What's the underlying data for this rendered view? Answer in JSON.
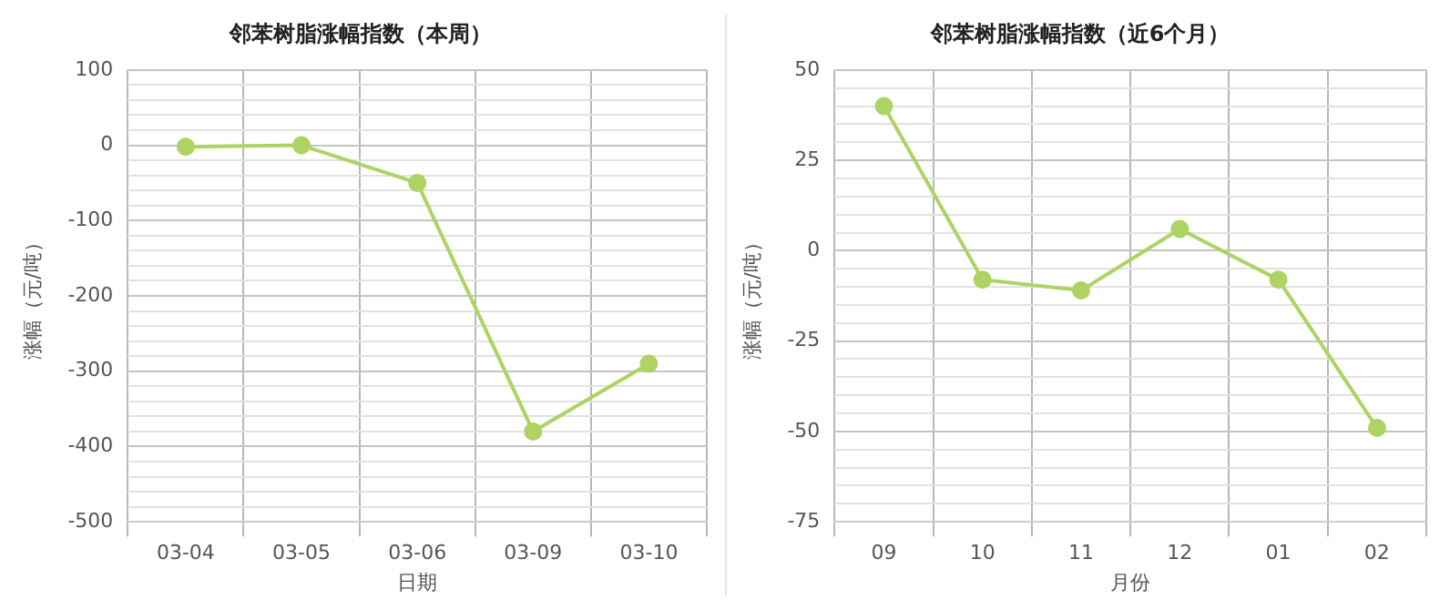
{
  "chart_data": [
    {
      "type": "line",
      "title": "邻苯树脂涨幅指数（本周）",
      "xlabel": "日期",
      "ylabel": "涨幅（元/吨）",
      "categories": [
        "03-04",
        "03-05",
        "03-06",
        "03-09",
        "03-10"
      ],
      "series": [
        {
          "color": "#add462",
          "values": [
            -2,
            0,
            -50,
            -380,
            -290
          ]
        }
      ],
      "ylim": [
        -500,
        100
      ],
      "yticks": [
        -500,
        {
          "value": -480,
          "label": null
        },
        {
          "value": -460,
          "label": null
        },
        {
          "value": -440,
          "label": null
        },
        {
          "value": -420,
          "label": null
        },
        -400,
        {
          "value": -380,
          "label": null
        },
        {
          "value": -360,
          "label": null
        },
        {
          "value": -340,
          "label": null
        },
        {
          "value": -320,
          "label": null
        },
        -300,
        {
          "value": -280,
          "label": null
        },
        {
          "value": -260,
          "label": null
        },
        {
          "value": -240,
          "label": null
        },
        {
          "value": -220,
          "label": null
        },
        -200,
        {
          "value": -180,
          "label": null
        },
        {
          "value": -160,
          "label": null
        },
        {
          "value": -140,
          "label": null
        },
        {
          "value": -120,
          "label": null
        },
        -100,
        {
          "value": -80,
          "label": null
        },
        {
          "value": -60,
          "label": null
        },
        {
          "value": -40,
          "label": null
        },
        {
          "value": -20,
          "label": null
        },
        0,
        {
          "value": 20,
          "label": null
        },
        {
          "value": 40,
          "label": null
        },
        {
          "value": 60,
          "label": null
        },
        {
          "value": 80,
          "label": null
        },
        100
      ],
      "grid": true,
      "legend": false,
      "marker": "circle",
      "line_style": "solid"
    },
    {
      "type": "line",
      "title": "邻苯树脂涨幅指数（近6个月）",
      "xlabel": "月份",
      "ylabel": "涨幅（元/吨）",
      "categories": [
        "09",
        "10",
        "11",
        "12",
        "01",
        "02"
      ],
      "series": [
        {
          "color": "#add462",
          "values": [
            40,
            -8,
            -11,
            6,
            -8,
            -49
          ]
        }
      ],
      "ylim": [
        -75,
        50
      ],
      "yticks": [
        -75,
        {
          "value": -70,
          "label": null
        },
        {
          "value": -65,
          "label": null
        },
        {
          "value": -60,
          "label": null
        },
        {
          "value": -55,
          "label": null
        },
        -50,
        {
          "value": -45,
          "label": null
        },
        {
          "value": -40,
          "label": null
        },
        {
          "value": -35,
          "label": null
        },
        {
          "value": -30,
          "label": null
        },
        -25,
        {
          "value": -20,
          "label": null
        },
        {
          "value": -15,
          "label": null
        },
        {
          "value": -10,
          "label": null
        },
        {
          "value": -5,
          "label": null
        },
        0,
        {
          "value": 5,
          "label": null
        },
        {
          "value": 10,
          "label": null
        },
        {
          "value": 15,
          "label": null
        },
        {
          "value": 20,
          "label": null
        },
        25,
        {
          "value": 30,
          "label": null
        },
        {
          "value": 35,
          "label": null
        },
        {
          "value": 40,
          "label": null
        },
        {
          "value": 45,
          "label": null
        },
        50
      ],
      "grid": true,
      "legend": false,
      "marker": "circle",
      "line_style": "solid"
    }
  ]
}
